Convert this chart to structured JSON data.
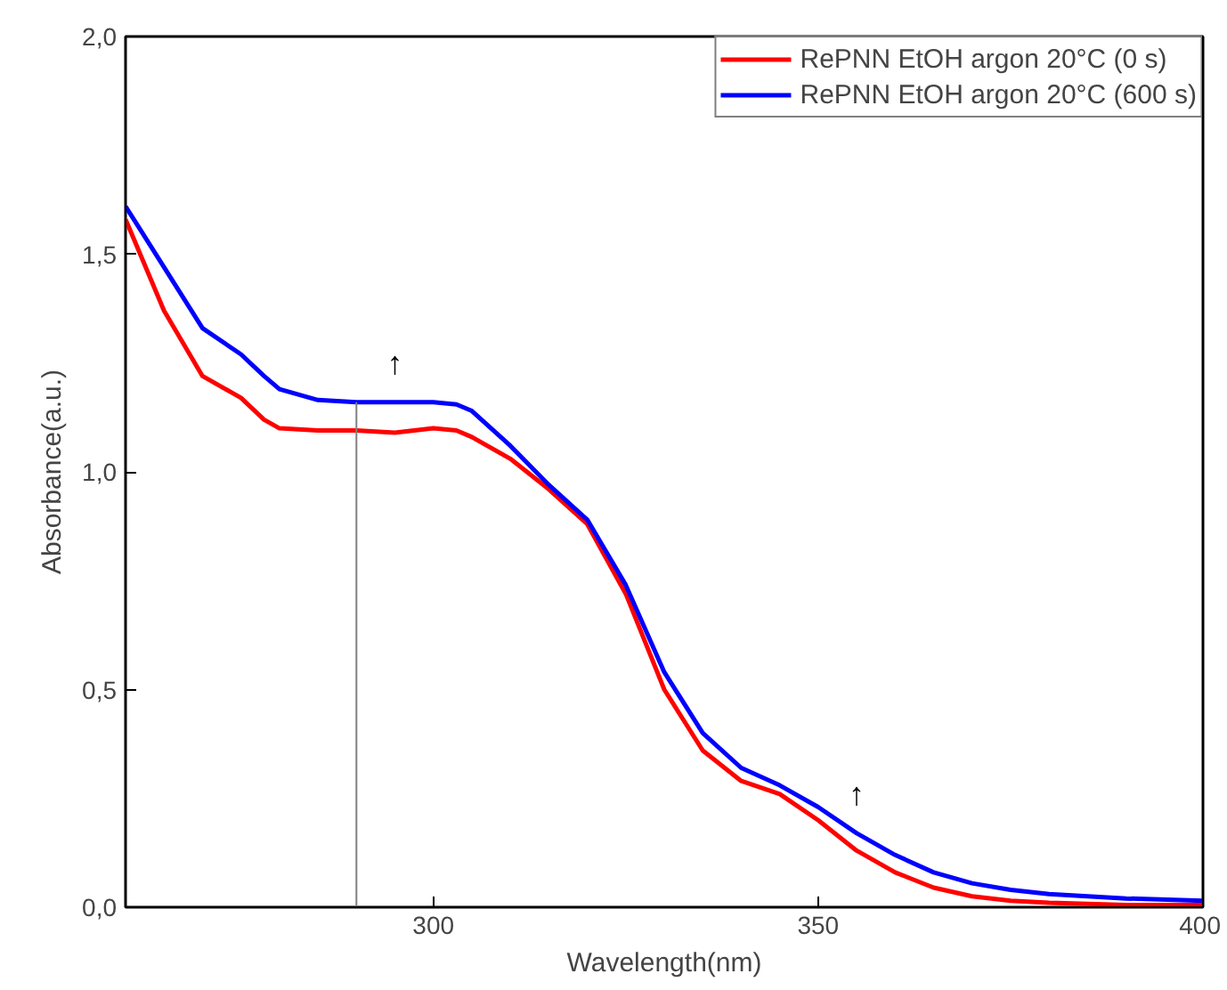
{
  "chart_data": {
    "type": "line",
    "xlabel": "Wavelength(nm)",
    "ylabel": "Absorbance(a.u.)",
    "xlim": [
      260,
      400
    ],
    "ylim": [
      0,
      2
    ],
    "xticks": [
      300,
      350,
      400
    ],
    "yticks": [
      {
        "value": 0,
        "label": "0,0"
      },
      {
        "value": 0.5,
        "label": "0,5"
      },
      {
        "value": 1,
        "label": "1,0"
      },
      {
        "value": 1.5,
        "label": "1,5"
      },
      {
        "value": 2,
        "label": "2,0"
      }
    ],
    "x": [
      260,
      265,
      270,
      275,
      278,
      280,
      285,
      290,
      295,
      300,
      303,
      305,
      310,
      315,
      320,
      325,
      330,
      335,
      340,
      345,
      350,
      355,
      360,
      365,
      370,
      375,
      380,
      390,
      400
    ],
    "series": [
      {
        "name": "RePNN EtOH argon 20°C (0 s)",
        "color": "#ff0000",
        "values": [
          1.58,
          1.37,
          1.22,
          1.17,
          1.12,
          1.1,
          1.095,
          1.095,
          1.09,
          1.1,
          1.095,
          1.08,
          1.03,
          0.96,
          0.88,
          0.72,
          0.5,
          0.36,
          0.29,
          0.26,
          0.2,
          0.13,
          0.08,
          0.045,
          0.025,
          0.015,
          0.01,
          0.005,
          0.005
        ]
      },
      {
        "name": "RePNN EtOH argon 20°C (600 s)",
        "color": "#0000ff",
        "values": [
          1.61,
          1.47,
          1.33,
          1.27,
          1.22,
          1.19,
          1.165,
          1.16,
          1.16,
          1.16,
          1.155,
          1.14,
          1.06,
          0.97,
          0.89,
          0.74,
          0.54,
          0.4,
          0.32,
          0.28,
          0.23,
          0.17,
          0.12,
          0.08,
          0.055,
          0.04,
          0.03,
          0.02,
          0.015
        ]
      },
      {
        "color": "#808080",
        "x": [
          290,
          290
        ],
        "values": [
          0,
          1.16
        ]
      }
    ],
    "annotations": [
      {
        "text": "↑",
        "x": 295,
        "y": 1.16
      },
      {
        "text": "↑",
        "x": 355,
        "y": 0.17
      }
    ],
    "legend": "top right",
    "grid": false,
    "line_style": "solid"
  }
}
